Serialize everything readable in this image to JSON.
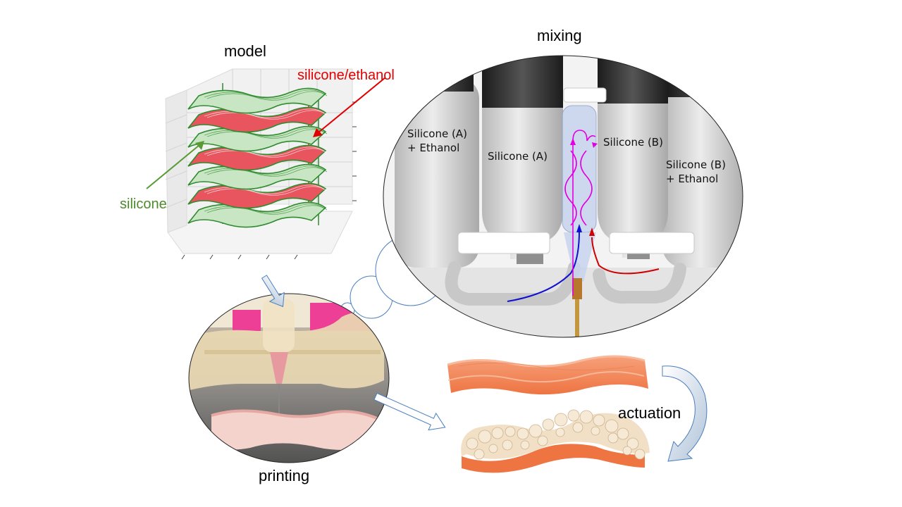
{
  "titles": {
    "model": "model",
    "mixing": "mixing",
    "printing": "printing",
    "actuation": "actuation"
  },
  "model_labels": {
    "mix": "silicone/ethanol",
    "pure": "silicone"
  },
  "bottles": [
    {
      "line1": "Silicone (A)",
      "line2": "+ Ethanol"
    },
    {
      "line1": "Silicone (A)",
      "line2": ""
    },
    {
      "line1": "Silicone (B)",
      "line2": ""
    },
    {
      "line1": "Silicone (B)",
      "line2": "+ Ethanol"
    }
  ],
  "colors": {
    "mix_layer": "#e8555f",
    "pure_layer": "#2e8b2e",
    "mix_label": "#e00000",
    "pure_label": "#4e8a2a",
    "flow_blue": "#1010d0",
    "flow_red": "#d00000",
    "flow_magenta": "#e000e0",
    "arrow_outline": "#4a7fbf"
  }
}
